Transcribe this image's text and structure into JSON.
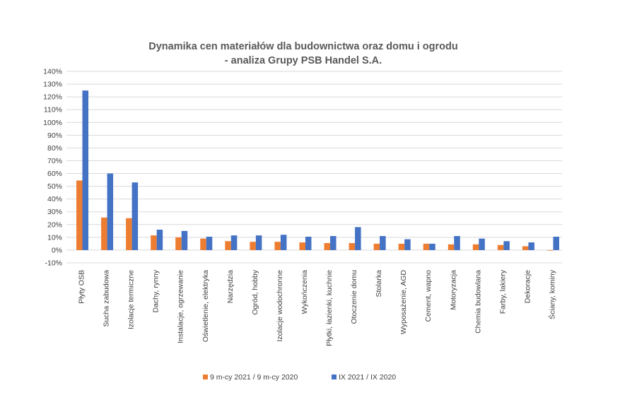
{
  "chart_data": {
    "type": "bar",
    "title": [
      "Dynamika cen materiałów dla budownictwa oraz domu i ogrodu",
      "- analiza Grupy PSB Handel S.A."
    ],
    "categories": [
      "Płyty OSB",
      "Sucha zabudowa",
      "Izolacje termiczne",
      "Dachy, rynny",
      "Instalacje, ogrzewanie",
      "Oświetlenie, elektryka",
      "Narzędzia",
      "Ogród, hobby",
      "Izolacje wodochronne",
      "Wykończenia",
      "Płytki, łazienki, kuchnie",
      "Otoczenie domu",
      "Stolarka",
      "Wyposażenie, AGD",
      "Cement, wapno",
      "Motoryzacja",
      "Chemia budowlana",
      "Farby, lakiery",
      "Dekoracje",
      "Ściany, kominy"
    ],
    "series": [
      {
        "name": "9 m-cy 2021 / 9 m-cy 2020",
        "color": "#ed7d31",
        "values": [
          54.5,
          25.5,
          25,
          11.5,
          10,
          9,
          7,
          6.5,
          6.5,
          6,
          5.5,
          5.5,
          5,
          5,
          5,
          4.5,
          4.5,
          4,
          3,
          0
        ]
      },
      {
        "name": "IX 2021 / IX 2020",
        "color": "#4472c4",
        "values": [
          125,
          60,
          53,
          16,
          15,
          10.5,
          11.5,
          11.5,
          12,
          10.5,
          11,
          18,
          11,
          8.5,
          5,
          11,
          9,
          7,
          6,
          10.5
        ]
      }
    ],
    "ylim": [
      -10,
      140
    ],
    "yticks": [
      "-10%",
      "0%",
      "10%",
      "20%",
      "30%",
      "40%",
      "50%",
      "60%",
      "70%",
      "80%",
      "90%",
      "100%",
      "110%",
      "120%",
      "130%",
      "140%"
    ],
    "grid": true,
    "legend": "bottom"
  }
}
